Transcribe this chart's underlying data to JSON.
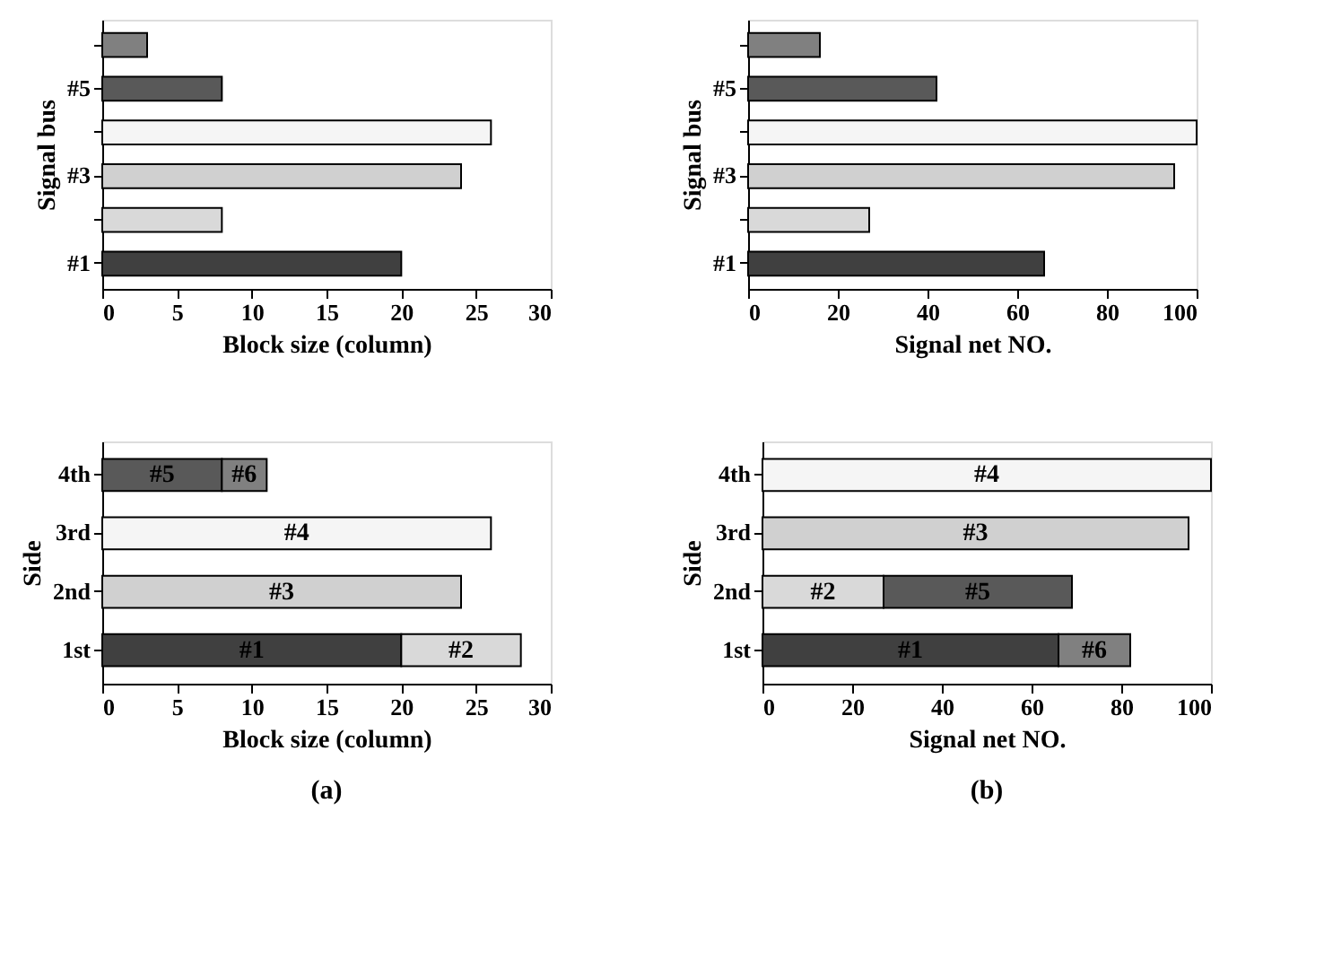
{
  "chart_data": [
    {
      "type": "bar",
      "orientation": "horizontal",
      "ylabel": "Signal bus",
      "xlabel": "Block size (column)",
      "categories": [
        null,
        "#5",
        null,
        "#3",
        null,
        "#1"
      ],
      "values": [
        3,
        8,
        26,
        24,
        8,
        20
      ],
      "colors": [
        "#808080",
        "#595959",
        "#f5f5f5",
        "#d0d0d0",
        "#d9d9d9",
        "#404040"
      ],
      "xlim": [
        0,
        30
      ],
      "xticks": [
        0,
        5,
        10,
        15,
        20,
        25,
        30
      ]
    },
    {
      "type": "bar",
      "orientation": "horizontal",
      "ylabel": "Signal bus",
      "xlabel": "Signal net NO.",
      "categories": [
        null,
        "#5",
        null,
        "#3",
        null,
        "#1"
      ],
      "values": [
        16,
        42,
        100,
        95,
        27,
        66
      ],
      "colors": [
        "#808080",
        "#595959",
        "#f5f5f5",
        "#d0d0d0",
        "#d9d9d9",
        "#404040"
      ],
      "xlim": [
        0,
        100
      ],
      "xticks": [
        0,
        20,
        40,
        60,
        80,
        100
      ]
    },
    {
      "type": "bar",
      "orientation": "horizontal",
      "stacked": true,
      "ylabel": "Side",
      "xlabel": "Block size (column)",
      "categories": [
        "4th",
        "3rd",
        "2nd",
        "1st"
      ],
      "series": [
        {
          "name": "#1",
          "color": "#404040",
          "values": [
            null,
            null,
            null,
            20
          ]
        },
        {
          "name": "#2",
          "color": "#d9d9d9",
          "values": [
            null,
            null,
            null,
            8
          ]
        },
        {
          "name": "#3",
          "color": "#d0d0d0",
          "values": [
            null,
            null,
            24,
            null
          ]
        },
        {
          "name": "#4",
          "color": "#f5f5f5",
          "values": [
            null,
            26,
            null,
            null
          ]
        },
        {
          "name": "#5",
          "color": "#595959",
          "values": [
            8,
            null,
            null,
            null
          ]
        },
        {
          "name": "#6",
          "color": "#808080",
          "values": [
            3,
            null,
            null,
            null
          ]
        }
      ],
      "xlim": [
        0,
        30
      ],
      "xticks": [
        0,
        5,
        10,
        15,
        20,
        25,
        30
      ],
      "annotations": [
        "(a)"
      ]
    },
    {
      "type": "bar",
      "orientation": "horizontal",
      "stacked": true,
      "ylabel": "Side",
      "xlabel": "Signal net NO.",
      "categories": [
        "4th",
        "3rd",
        "2nd",
        "1st"
      ],
      "series": [
        {
          "name": "#1",
          "color": "#404040",
          "values": [
            null,
            null,
            null,
            66
          ]
        },
        {
          "name": "#2",
          "color": "#d9d9d9",
          "values": [
            null,
            null,
            27,
            null
          ]
        },
        {
          "name": "#3",
          "color": "#d0d0d0",
          "values": [
            null,
            95,
            null,
            null
          ]
        },
        {
          "name": "#4",
          "color": "#f5f5f5",
          "values": [
            100,
            null,
            null,
            null
          ]
        },
        {
          "name": "#5",
          "color": "#595959",
          "values": [
            null,
            null,
            42,
            null
          ]
        },
        {
          "name": "#6",
          "color": "#808080",
          "values": [
            null,
            null,
            null,
            16
          ]
        }
      ],
      "xlim": [
        0,
        100
      ],
      "xticks": [
        0,
        20,
        40,
        60,
        80,
        100
      ],
      "annotations": [
        "(b)"
      ]
    }
  ]
}
